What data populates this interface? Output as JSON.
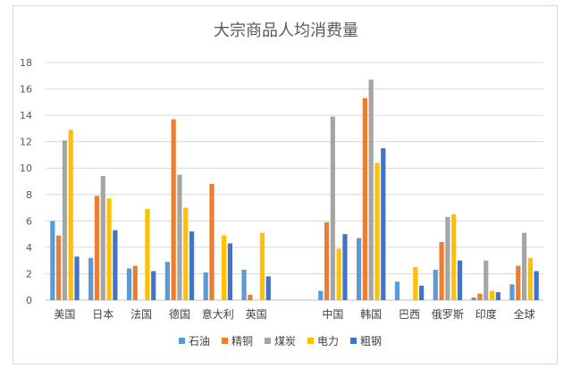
{
  "chart_data": {
    "type": "bar",
    "title": "大宗商品人均消费量",
    "xlabel": "",
    "ylabel": "",
    "ylim": [
      0,
      18
    ],
    "yticks": [
      0,
      2,
      4,
      6,
      8,
      10,
      12,
      14,
      16,
      18
    ],
    "grid": true,
    "legend_position": "bottom",
    "categories": [
      "美国",
      "日本",
      "法国",
      "德国",
      "意大利",
      "英国",
      "",
      "中国",
      "韩国",
      "巴西",
      "俄罗斯",
      "印度",
      "全球"
    ],
    "series": [
      {
        "name": "石油",
        "color": "#5b9bd5",
        "values": [
          6.0,
          3.2,
          2.4,
          2.9,
          2.1,
          2.3,
          null,
          0.7,
          4.7,
          1.4,
          2.3,
          0.2,
          1.2
        ]
      },
      {
        "name": "精铜",
        "color": "#ed7d31",
        "values": [
          4.9,
          7.9,
          2.6,
          13.7,
          8.8,
          0.4,
          null,
          5.9,
          15.3,
          null,
          4.4,
          0.5,
          2.6
        ]
      },
      {
        "name": "煤炭",
        "color": "#a5a5a5",
        "values": [
          12.1,
          9.4,
          null,
          9.5,
          null,
          null,
          null,
          13.9,
          16.7,
          null,
          6.3,
          3.0,
          5.1
        ]
      },
      {
        "name": "电力",
        "color": "#ffc000",
        "values": [
          12.9,
          7.7,
          6.9,
          7.0,
          4.9,
          5.1,
          null,
          3.9,
          10.4,
          2.5,
          6.5,
          0.7,
          3.2
        ]
      },
      {
        "name": "粗钢",
        "color": "#4472c4",
        "values": [
          3.3,
          5.3,
          2.2,
          5.2,
          4.3,
          1.8,
          null,
          5.0,
          11.5,
          1.1,
          3.0,
          0.6,
          2.2
        ]
      }
    ]
  }
}
